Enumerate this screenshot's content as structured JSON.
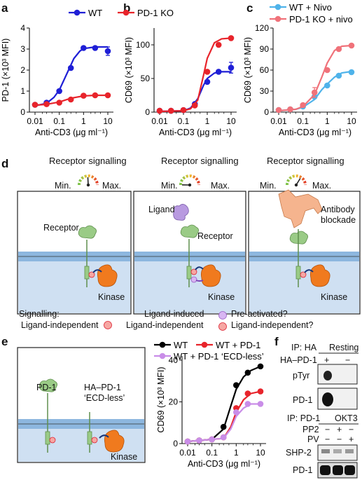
{
  "panel_labels": {
    "a": "a",
    "b": "b",
    "c": "c",
    "d": "d",
    "e": "e",
    "f": "f"
  },
  "chart_data": [
    {
      "id": "a",
      "type": "line",
      "xscale": "log",
      "x": [
        0.01,
        0.03,
        0.1,
        0.3,
        1,
        3,
        10
      ],
      "xticks": [
        "0.01",
        "0.1",
        "1",
        "10"
      ],
      "yticks": [
        "0",
        "1",
        "2",
        "3",
        "4"
      ],
      "ylim": [
        0,
        4
      ],
      "xlabel": "Anti-CD3 (μg ml⁻¹)",
      "ylabel": "PD-1 (×10³ MFI)",
      "series": [
        {
          "name": "WT",
          "color": "#1f1fd6",
          "values": [
            0.35,
            0.45,
            1.0,
            2.1,
            3.05,
            3.05,
            2.9
          ],
          "err": [
            0,
            0,
            0,
            0,
            0,
            0,
            0.2
          ],
          "fit": [
            [
              0.01,
              0.3
            ],
            [
              0.03,
              0.42
            ],
            [
              0.06,
              0.7
            ],
            [
              0.1,
              1.05
            ],
            [
              0.2,
              1.8
            ],
            [
              0.4,
              2.55
            ],
            [
              0.7,
              2.9
            ],
            [
              1,
              3.02
            ],
            [
              3,
              3.1
            ],
            [
              10,
              3.1
            ]
          ]
        },
        {
          "name": "PD-1 KO",
          "color": "#e8242b",
          "values": [
            0.35,
            0.38,
            0.45,
            0.6,
            0.78,
            0.8,
            0.8
          ],
          "err": [
            0,
            0,
            0,
            0,
            0,
            0,
            0
          ],
          "fit": [
            [
              0.01,
              0.33
            ],
            [
              0.03,
              0.37
            ],
            [
              0.1,
              0.48
            ],
            [
              0.3,
              0.66
            ],
            [
              1,
              0.77
            ],
            [
              3,
              0.8
            ],
            [
              10,
              0.8
            ]
          ]
        }
      ]
    },
    {
      "id": "b",
      "type": "line",
      "xscale": "log",
      "x": [
        0.01,
        0.03,
        0.1,
        0.3,
        1,
        3,
        10
      ],
      "xticks": [
        "0.01",
        "0.1",
        "1",
        "10"
      ],
      "yticks": [
        "0",
        "50",
        "100"
      ],
      "ylim": [
        0,
        125
      ],
      "xlabel": "Anti-CD3 (μg ml⁻¹)",
      "ylabel": "CD69 (×10³ MFI)",
      "series": [
        {
          "name": "WT",
          "color": "#1f1fd6",
          "values": [
            2,
            2,
            3,
            12,
            45,
            60,
            66
          ],
          "err": [
            0,
            0,
            0,
            0,
            0,
            0,
            8
          ],
          "fit": [
            [
              0.01,
              1
            ],
            [
              0.1,
              2
            ],
            [
              0.2,
              6
            ],
            [
              0.4,
              20
            ],
            [
              0.7,
              40
            ],
            [
              1,
              50
            ],
            [
              2,
              58
            ],
            [
              4,
              60
            ],
            [
              10,
              60
            ]
          ]
        },
        {
          "name": "PD-1 KO",
          "color": "#e8242b",
          "values": [
            2,
            2,
            3,
            10,
            60,
            100,
            110
          ],
          "err": [
            0,
            0,
            0,
            0,
            0,
            0,
            0
          ],
          "fit": [
            [
              0.01,
              1
            ],
            [
              0.1,
              2
            ],
            [
              0.2,
              5
            ],
            [
              0.4,
              18
            ],
            [
              0.7,
              55
            ],
            [
              1,
              80
            ],
            [
              2,
              103
            ],
            [
              4,
              109
            ],
            [
              10,
              110
            ]
          ]
        }
      ]
    },
    {
      "id": "c",
      "type": "line",
      "xscale": "log",
      "x": [
        0.01,
        0.03,
        0.1,
        0.3,
        1,
        3,
        10
      ],
      "xticks": [
        "0.01",
        "0.1",
        "1",
        "10"
      ],
      "yticks": [
        "0",
        "30",
        "60",
        "90",
        "120"
      ],
      "ylim": [
        0,
        120
      ],
      "xlabel": "Anti-CD3 (μg ml⁻¹)",
      "ylabel": "CD69 (×10³ MFI)",
      "series": [
        {
          "name": "WT + Nivo",
          "color": "#4fb3ea",
          "values": [
            3,
            4,
            8,
            22,
            38,
            52,
            57
          ],
          "err": [
            0,
            0,
            0,
            0,
            0,
            0,
            0
          ],
          "fit": [
            [
              0.01,
              2
            ],
            [
              0.05,
              4
            ],
            [
              0.1,
              7
            ],
            [
              0.3,
              18
            ],
            [
              0.6,
              32
            ],
            [
              1,
              40
            ],
            [
              2,
              50
            ],
            [
              4,
              56
            ],
            [
              10,
              58
            ]
          ]
        },
        {
          "name": "PD-1 KO + nivo",
          "color": "#f0727a",
          "values": [
            3,
            4,
            10,
            28,
            60,
            90,
            95
          ],
          "err": [
            0,
            0,
            0,
            7,
            0,
            0,
            0
          ],
          "fit": [
            [
              0.01,
              2
            ],
            [
              0.05,
              4
            ],
            [
              0.1,
              8
            ],
            [
              0.3,
              25
            ],
            [
              0.6,
              50
            ],
            [
              1,
              70
            ],
            [
              2,
              88
            ],
            [
              4,
              94
            ],
            [
              10,
              95
            ]
          ]
        }
      ]
    },
    {
      "id": "e",
      "type": "line",
      "xscale": "log",
      "x": [
        0.01,
        0.03,
        0.1,
        0.3,
        1,
        3,
        10
      ],
      "xticks": [
        "0.01",
        "0.1",
        "1",
        "10"
      ],
      "yticks": [
        "0",
        "20",
        "40"
      ],
      "ylim": [
        0,
        42
      ],
      "xlabel": "Anti-CD3 (μg ml⁻¹)",
      "ylabel": "CD69 (×10³ MFI)",
      "series": [
        {
          "name": "WT",
          "color": "#000000",
          "values": [
            1,
            1.5,
            2,
            8,
            28,
            34,
            37
          ],
          "err": [
            0,
            0,
            0,
            0,
            0,
            0,
            0
          ],
          "fit": [
            [
              0.01,
              1
            ],
            [
              0.1,
              2
            ],
            [
              0.3,
              7
            ],
            [
              0.6,
              18
            ],
            [
              1,
              26
            ],
            [
              2,
              32
            ],
            [
              4,
              35
            ],
            [
              10,
              37
            ]
          ]
        },
        {
          "name": "WT + PD-1",
          "color": "#e8242b",
          "values": [
            1,
            1.5,
            2,
            3,
            17,
            24,
            25
          ],
          "err": [
            0,
            0,
            0,
            0,
            0,
            0,
            0
          ],
          "fit": [
            [
              0.01,
              1
            ],
            [
              0.3,
              2.5
            ],
            [
              0.6,
              8
            ],
            [
              1,
              15
            ],
            [
              2,
              21
            ],
            [
              4,
              24
            ],
            [
              10,
              25
            ]
          ]
        },
        {
          "name": "WT + PD-1 ‘ECD-less’",
          "color": "#c98de8",
          "values": [
            1,
            1.5,
            2,
            3,
            15,
            19,
            19
          ],
          "err": [
            0,
            0,
            0,
            0,
            0,
            0,
            0
          ],
          "fit": [
            [
              0.01,
              1
            ],
            [
              0.3,
              2.5
            ],
            [
              0.6,
              7
            ],
            [
              1,
              13
            ],
            [
              2,
              17
            ],
            [
              4,
              19
            ],
            [
              10,
              19
            ]
          ]
        }
      ]
    }
  ],
  "panel_d": {
    "gauges": [
      {
        "title": "Receptor signalling",
        "min": "Min.",
        "max": "Max."
      },
      {
        "title": "Receptor signalling",
        "min": "Min.",
        "max": "Max."
      },
      {
        "title": "Receptor signalling",
        "min": "Min.",
        "max": "Max."
      }
    ],
    "box1": {
      "receptor": "Receptor",
      "kinase": "Kinase"
    },
    "box2": {
      "ligand": "Ligand",
      "receptor": "Receptor",
      "kinase": "Kinase"
    },
    "box3": {
      "antibody": "Antibody",
      "blockade": "blockade",
      "kinase": "Kinase"
    },
    "legend": {
      "signalling": "Signalling:",
      "li1": "Ligand-independent",
      "li_induced": "Ligand-induced",
      "li2": "Ligand-independent",
      "pre": "Pre-activated?",
      "li3": "Ligand-independent?",
      "p": "P"
    },
    "colors": {
      "membrane": "#a9c8e6",
      "receptor": "#9acb86",
      "ligand": "#b89ae0",
      "antibody": "#f5b48e",
      "kinase": "#f07a1e"
    }
  },
  "panel_e_diagram": {
    "pd1": "PD-1",
    "ha_pd1": "HA–PD-1",
    "ecd_less": "‘ECD-less’",
    "kinase": "Kinase"
  },
  "panel_f": {
    "ip_ha": "IP: HA",
    "resting": "Resting",
    "ha_pd1_row": "HA–PD-1",
    "signs1": [
      "+",
      "−"
    ],
    "ptyr": "pTyr",
    "pd1": "PD-1",
    "ip_pd1": "IP: PD-1",
    "okt3": "OKT3",
    "pp2": "PP2",
    "pv": "PV",
    "pp2_signs": [
      "−",
      "+",
      "−"
    ],
    "pv_signs": [
      "−",
      "−",
      "+"
    ],
    "shp2": "SHP-2",
    "pd1_2": "PD-1"
  }
}
